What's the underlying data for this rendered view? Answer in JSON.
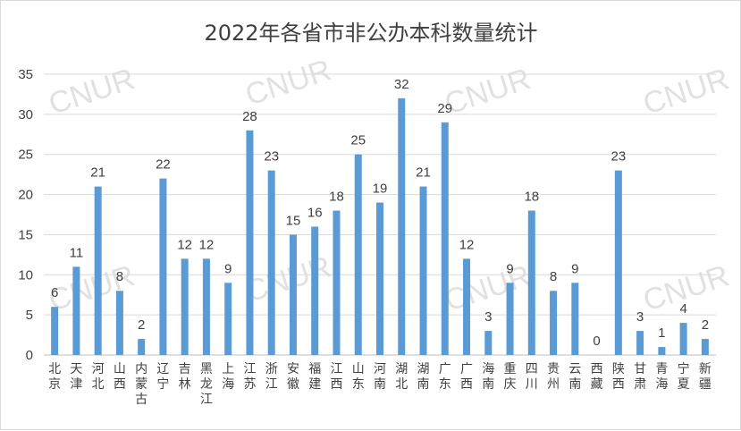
{
  "chart_data": {
    "type": "bar",
    "title": "2022年各省市非公办本科数量统计",
    "categories": [
      "北京",
      "天津",
      "河北",
      "山西",
      "内蒙古",
      "辽宁",
      "吉林",
      "黑龙江",
      "上海",
      "江苏",
      "浙江",
      "安徽",
      "福建",
      "江西",
      "山东",
      "河南",
      "湖北",
      "湖南",
      "广东",
      "广西",
      "海南",
      "重庆",
      "四川",
      "贵州",
      "云南",
      "西藏",
      "陕西",
      "甘肃",
      "青海",
      "宁夏",
      "新疆"
    ],
    "values": [
      6,
      11,
      21,
      8,
      2,
      22,
      12,
      12,
      9,
      28,
      23,
      15,
      16,
      18,
      25,
      19,
      32,
      21,
      29,
      12,
      3,
      9,
      18,
      8,
      9,
      0,
      23,
      3,
      1,
      4,
      2
    ],
    "yticks": [
      "0",
      "5",
      "10",
      "15",
      "20",
      "25",
      "30",
      "35"
    ],
    "ylim": [
      0,
      35
    ],
    "grid": true,
    "data_labels": true,
    "bar_color": "#5b9bd5",
    "watermark": "CNUR"
  }
}
